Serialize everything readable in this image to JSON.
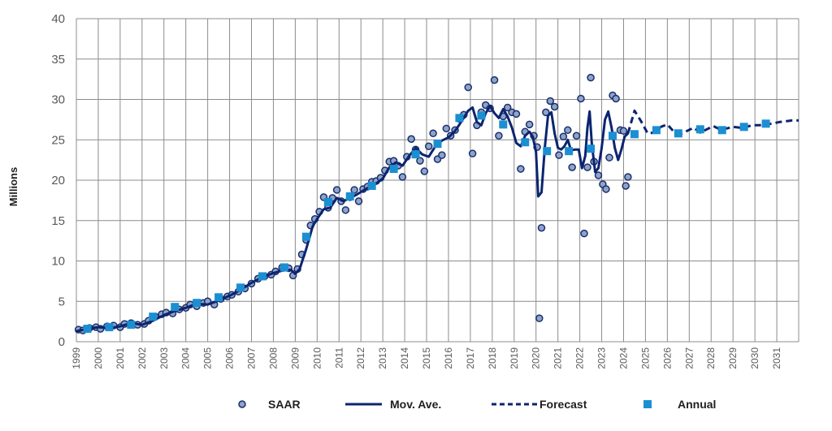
{
  "chart_data": {
    "type": "line",
    "title": "",
    "xlabel": "",
    "ylabel": "Millions",
    "xlim": [
      1999,
      2032
    ],
    "ylim": [
      0,
      40
    ],
    "yticks": [
      0,
      5,
      10,
      15,
      20,
      25,
      30,
      35,
      40
    ],
    "xticks": [
      "1999",
      "2000",
      "2001",
      "2002",
      "2003",
      "2004",
      "2005",
      "2006",
      "2007",
      "2008",
      "2009",
      "2010",
      "2011",
      "2012",
      "2013",
      "2014",
      "2015",
      "2016",
      "2017",
      "2018",
      "2019",
      "2020",
      "2021",
      "2022",
      "2023",
      "2024",
      "2025",
      "2026",
      "2027",
      "2028",
      "2029",
      "2030",
      "2031"
    ],
    "grid": true,
    "legend_position": "bottom",
    "colors": {
      "saar": "#1a2f6b",
      "saar_fill": "#8ea3c9",
      "mov_ave": "#0c2470",
      "forecast": "#0c2470",
      "annual": "#1b8fd1",
      "grid": "#8c8c8c"
    },
    "series": [
      {
        "name": "SAAR",
        "marker": "circle",
        "x": [
          1999.1,
          1999.3,
          1999.6,
          1999.9,
          2000.1,
          2000.4,
          2000.7,
          2001.0,
          2001.2,
          2001.5,
          2001.8,
          2002.1,
          2002.3,
          2002.6,
          2002.9,
          2003.1,
          2003.4,
          2003.7,
          2004.0,
          2004.2,
          2004.5,
          2004.8,
          2005.0,
          2005.3,
          2005.6,
          2005.9,
          2006.1,
          2006.4,
          2006.7,
          2007.0,
          2007.3,
          2007.6,
          2007.9,
          2008.1,
          2008.4,
          2008.7,
          2008.9,
          2009.1,
          2009.3,
          2009.5,
          2009.7,
          2009.9,
          2010.1,
          2010.3,
          2010.5,
          2010.7,
          2010.9,
          2011.1,
          2011.3,
          2011.5,
          2011.7,
          2011.9,
          2012.1,
          2012.3,
          2012.5,
          2012.7,
          2012.9,
          2013.1,
          2013.3,
          2013.5,
          2013.7,
          2013.9,
          2014.1,
          2014.3,
          2014.5,
          2014.7,
          2014.9,
          2015.1,
          2015.3,
          2015.5,
          2015.7,
          2015.9,
          2016.1,
          2016.3,
          2016.5,
          2016.7,
          2016.9,
          2017.1,
          2017.3,
          2017.5,
          2017.7,
          2017.9,
          2018.1,
          2018.3,
          2018.5,
          2018.7,
          2018.9,
          2019.1,
          2019.3,
          2019.5,
          2019.7,
          2019.9,
          2020.05,
          2020.15,
          2020.25,
          2020.45,
          2020.65,
          2020.85,
          2021.05,
          2021.25,
          2021.45,
          2021.65,
          2021.85,
          2022.05,
          2022.2,
          2022.35,
          2022.5,
          2022.65,
          2022.85,
          2023.05,
          2023.2,
          2023.35,
          2023.5,
          2023.65,
          2023.85,
          2024.0,
          2024.1,
          2024.2
        ],
        "y": [
          1.5,
          1.4,
          1.7,
          1.8,
          1.6,
          1.9,
          2.0,
          1.8,
          2.2,
          2.3,
          2.1,
          2.2,
          2.6,
          3.1,
          3.4,
          3.6,
          3.5,
          4.0,
          4.2,
          4.6,
          4.4,
          4.8,
          5.0,
          4.6,
          5.3,
          5.6,
          5.8,
          6.2,
          6.6,
          7.2,
          7.8,
          8.1,
          8.3,
          8.7,
          9.2,
          9.1,
          8.2,
          9.0,
          10.8,
          12.6,
          14.4,
          15.2,
          16.1,
          17.9,
          16.6,
          17.8,
          18.8,
          17.4,
          16.3,
          17.9,
          18.8,
          17.4,
          18.9,
          19.2,
          19.8,
          19.9,
          20.3,
          21.2,
          22.3,
          22.4,
          21.8,
          20.4,
          22.9,
          25.1,
          23.8,
          22.4,
          21.1,
          24.2,
          25.8,
          22.6,
          23.1,
          26.4,
          25.5,
          26.2,
          27.6,
          28.1,
          31.5,
          23.3,
          26.8,
          28.4,
          29.3,
          28.9,
          32.4,
          25.5,
          27.9,
          29.0,
          28.4,
          28.2,
          21.4,
          26.0,
          26.9,
          25.5,
          24.1,
          2.9,
          14.1,
          28.4,
          29.8,
          29.1,
          23.1,
          25.4,
          26.2,
          21.6,
          25.5,
          30.1,
          13.4,
          21.6,
          32.7,
          22.3,
          20.6,
          19.5,
          18.9,
          22.8,
          30.5,
          30.1,
          26.2,
          26.1,
          19.3,
          20.4
        ]
      },
      {
        "name": "Mov. Ave.",
        "style": "solid",
        "x": [
          1999.0,
          1999.5,
          2000.0,
          2000.5,
          2001.0,
          2001.5,
          2002.0,
          2002.5,
          2003.0,
          2003.5,
          2004.0,
          2004.5,
          2005.0,
          2005.5,
          2006.0,
          2006.5,
          2007.0,
          2007.5,
          2008.0,
          2008.4,
          2008.8,
          2009.0,
          2009.2,
          2009.5,
          2009.8,
          2010.0,
          2010.3,
          2010.6,
          2010.9,
          2011.2,
          2011.5,
          2011.8,
          2012.1,
          2012.4,
          2012.7,
          2013.0,
          2013.3,
          2013.6,
          2013.9,
          2014.2,
          2014.5,
          2014.8,
          2015.1,
          2015.4,
          2015.7,
          2016.0,
          2016.3,
          2016.6,
          2016.9,
          2017.1,
          2017.3,
          2017.5,
          2017.7,
          2017.9,
          2018.1,
          2018.3,
          2018.5,
          2018.7,
          2018.9,
          2019.1,
          2019.3,
          2019.5,
          2019.7,
          2019.85,
          2020.0,
          2020.1,
          2020.25,
          2020.4,
          2020.55,
          2020.7,
          2020.85,
          2021.0,
          2021.15,
          2021.3,
          2021.45,
          2021.6,
          2021.8,
          2021.95,
          2022.1,
          2022.25,
          2022.35,
          2022.45,
          2022.55,
          2022.7,
          2022.85,
          2023.0,
          2023.15,
          2023.3,
          2023.45,
          2023.6,
          2023.75,
          2023.9,
          2024.05,
          2024.2
        ],
        "y": [
          1.3,
          1.6,
          1.8,
          1.7,
          1.9,
          2.3,
          2.1,
          2.6,
          3.3,
          3.8,
          4.2,
          4.7,
          4.6,
          5.1,
          5.7,
          6.4,
          7.3,
          8.0,
          8.5,
          8.8,
          8.9,
          8.4,
          9.0,
          11.5,
          14.3,
          15.2,
          16.4,
          16.6,
          17.8,
          17.4,
          17.8,
          18.2,
          18.7,
          19.2,
          19.6,
          20.2,
          21.6,
          22.2,
          21.8,
          23.0,
          24.0,
          23.2,
          22.9,
          24.2,
          24.9,
          25.3,
          26.1,
          27.3,
          28.6,
          29.0,
          27.2,
          26.8,
          28.3,
          29.2,
          28.3,
          27.7,
          28.8,
          27.9,
          26.5,
          24.6,
          24.2,
          25.5,
          26.0,
          25.4,
          23.5,
          18.0,
          18.5,
          24.0,
          28.0,
          28.4,
          25.8,
          24.0,
          23.8,
          24.2,
          25.0,
          23.7,
          23.8,
          23.8,
          21.5,
          23.0,
          26.5,
          28.5,
          24.5,
          21.0,
          21.5,
          24.0,
          27.5,
          28.5,
          26.5,
          24.0,
          22.5,
          23.8,
          25.4,
          25.8
        ]
      },
      {
        "name": "Forecast",
        "style": "dashed",
        "x": [
          2024.2,
          2024.5,
          2024.8,
          2025.1,
          2025.4,
          2025.7,
          2026.0,
          2026.3,
          2026.6,
          2026.9,
          2027.2,
          2027.5,
          2027.8,
          2028.1,
          2028.4,
          2028.7,
          2029.0,
          2029.3,
          2029.6,
          2029.9,
          2030.2,
          2030.5,
          2030.8,
          2031.1,
          2031.4,
          2031.7,
          2032.0
        ],
        "y": [
          25.8,
          28.6,
          27.3,
          25.8,
          25.9,
          26.6,
          26.9,
          26.0,
          25.7,
          26.1,
          26.5,
          25.9,
          26.3,
          26.7,
          26.3,
          26.4,
          26.6,
          26.5,
          26.6,
          26.8,
          26.8,
          26.9,
          27.0,
          27.2,
          27.3,
          27.4,
          27.4
        ]
      },
      {
        "name": "Annual",
        "marker": "square",
        "x": [
          1999.5,
          2000.5,
          2001.5,
          2002.5,
          2003.5,
          2004.5,
          2005.5,
          2006.5,
          2007.5,
          2008.5,
          2009.5,
          2010.5,
          2011.5,
          2012.5,
          2013.5,
          2014.5,
          2015.5,
          2016.5,
          2017.5,
          2018.5,
          2019.5,
          2020.5,
          2021.5,
          2022.5,
          2023.5,
          2024.5,
          2025.5,
          2026.5,
          2027.5,
          2028.5,
          2029.5,
          2030.5
        ],
        "y": [
          1.6,
          1.8,
          2.1,
          3.1,
          4.3,
          4.8,
          5.5,
          6.7,
          8.1,
          9.2,
          13.0,
          17.3,
          18.0,
          19.3,
          21.4,
          23.2,
          24.5,
          27.7,
          28.0,
          26.9,
          24.7,
          23.6,
          23.6,
          23.9,
          25.5,
          25.7,
          26.2,
          25.8,
          26.3,
          26.2,
          26.6,
          27.0
        ]
      }
    ]
  }
}
